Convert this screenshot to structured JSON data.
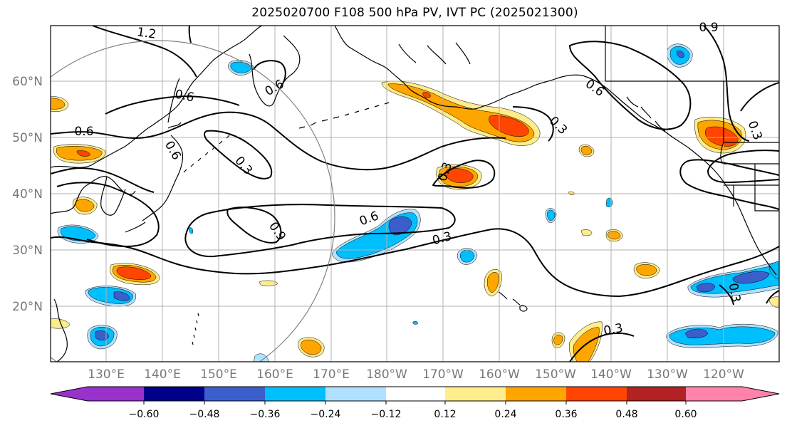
{
  "title": "2025020700 F108 500 hPa PV, IVT PC (2025021300)",
  "lat_labels": [
    "60°N",
    "50°N",
    "40°N",
    "30°N",
    "20°N"
  ],
  "lon_labels": [
    "130°E",
    "140°E",
    "150°E",
    "160°E",
    "170°E",
    "180°W",
    "170°W",
    "160°W",
    "150°W",
    "140°W",
    "130°W",
    "120°W"
  ],
  "colorbar": {
    "colors": [
      "#9932cc",
      "#00008b",
      "#3a5fcd",
      "#00bfff",
      "#b0e2ff",
      "#ffffff",
      "#ffec8b",
      "#ffa500",
      "#ff4500",
      "#b22222",
      "#ff82ab"
    ],
    "ticks": [
      "−0.60",
      "−0.48",
      "−0.36",
      "−0.24",
      "−0.12",
      "0.12",
      "0.24",
      "0.36",
      "0.48",
      "0.60"
    ]
  },
  "contour_labels": [
    "1.2",
    "0.6",
    "0.6",
    "0.6",
    "0.6",
    "0.3",
    "0.9",
    "0.6",
    "0.3",
    "0.3",
    "0.6",
    "0.3",
    "0.3",
    "0.3",
    "0.3",
    "0.9",
    "0.6",
    "0.6",
    "0.9"
  ],
  "shading_colors": {
    "positive_light": "#ffec8b",
    "positive_mid": "#ffa500",
    "positive_strong": "#ff4500",
    "negative_light": "#b0e2ff",
    "negative_mid": "#00bfff",
    "negative_strong": "#3a5fcd"
  }
}
